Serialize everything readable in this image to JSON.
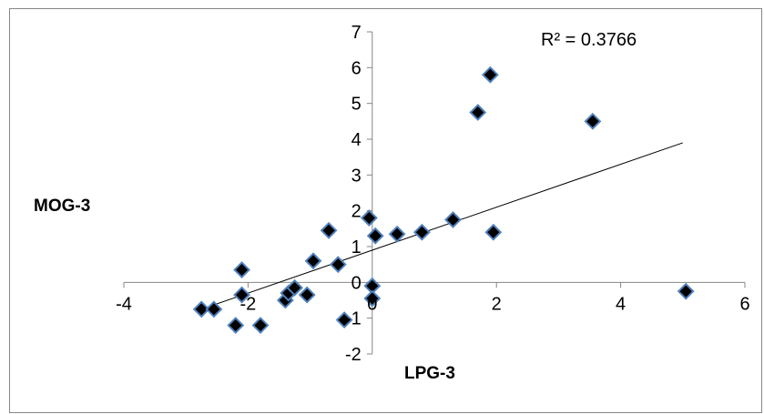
{
  "chart_data": {
    "type": "scatter",
    "xlabel": "LPG-3",
    "ylabel": "MOG-3",
    "xlim": [
      -4,
      6
    ],
    "ylim": [
      -2,
      7
    ],
    "x_ticks": [
      "-4",
      "-2",
      "0",
      "2",
      "4",
      "6"
    ],
    "y_ticks": [
      "-2",
      "-1",
      "0",
      "1",
      "2",
      "3",
      "4",
      "5",
      "6",
      "7"
    ],
    "grid": false,
    "legend": "none",
    "marker": "diamond",
    "marker_fill": "#000000",
    "marker_edge": "#4f81bd",
    "trendline": {
      "type": "linear",
      "from": [
        -2.7,
        -0.72
      ],
      "to": [
        5.0,
        3.9
      ],
      "color": "#000000",
      "r2_label": "R² = 0.3766"
    },
    "points": [
      [
        -2.75,
        -0.75
      ],
      [
        -2.55,
        -0.75
      ],
      [
        -2.2,
        -1.2
      ],
      [
        -2.1,
        0.35
      ],
      [
        -2.1,
        -0.35
      ],
      [
        -1.8,
        -1.2
      ],
      [
        -1.4,
        -0.5
      ],
      [
        -1.35,
        -0.3
      ],
      [
        -1.25,
        -0.15
      ],
      [
        -1.05,
        -0.35
      ],
      [
        -0.95,
        0.6
      ],
      [
        -0.7,
        1.45
      ],
      [
        -0.55,
        0.5
      ],
      [
        -0.45,
        -1.05
      ],
      [
        -0.05,
        1.8
      ],
      [
        0.0,
        -0.1
      ],
      [
        0.0,
        -0.45
      ],
      [
        0.05,
        1.3
      ],
      [
        0.4,
        1.35
      ],
      [
        0.8,
        1.4
      ],
      [
        1.3,
        1.75
      ],
      [
        1.7,
        4.75
      ],
      [
        1.9,
        5.8
      ],
      [
        1.95,
        1.4
      ],
      [
        3.55,
        4.5
      ],
      [
        5.05,
        -0.25
      ]
    ]
  }
}
